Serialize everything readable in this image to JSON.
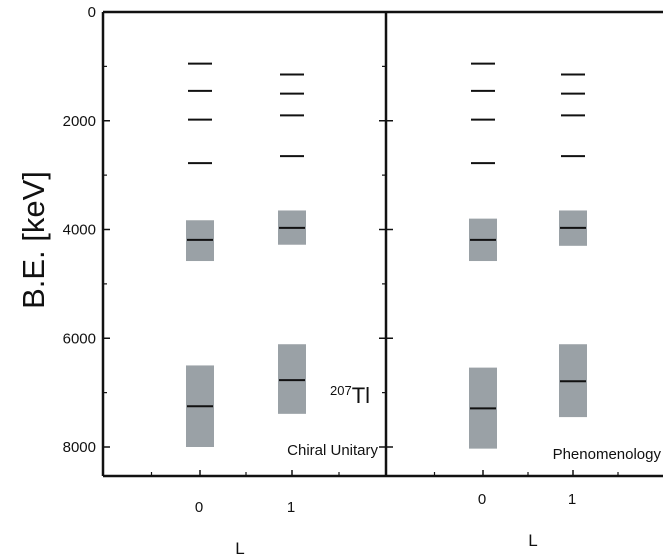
{
  "chart_data": {
    "type": "level-scheme",
    "ylabel": "B.E. [keV]",
    "xlabel": "L",
    "ylim": [
      0,
      8500
    ],
    "y_inverted": true,
    "y_ticks": [
      0,
      2000,
      4000,
      6000,
      8000
    ],
    "x_ticks": [
      0,
      1
    ],
    "grid": false,
    "panels": [
      {
        "label": "Chiral Unitary",
        "nucleus_mass": "207",
        "nucleus_symbol": "Tl",
        "levels": [
          {
            "L": 0,
            "energies": [
              950,
              1450,
              1980,
              2780
            ]
          },
          {
            "L": 1,
            "energies": [
              1150,
              1500,
              1900,
              2650
            ]
          }
        ],
        "bands": [
          {
            "L": 0,
            "center": 4190,
            "low": 3830,
            "high": 4580
          },
          {
            "L": 1,
            "center": 3970,
            "low": 3650,
            "high": 4280
          },
          {
            "L": 0,
            "center": 7250,
            "low": 6500,
            "high": 8000
          },
          {
            "L": 1,
            "center": 6770,
            "low": 6110,
            "high": 7390
          }
        ]
      },
      {
        "label": "Phenomenology",
        "levels": [
          {
            "L": 0,
            "energies": [
              950,
              1450,
              1980,
              2780
            ]
          },
          {
            "L": 1,
            "energies": [
              1150,
              1500,
              1900,
              2650
            ]
          }
        ],
        "bands": [
          {
            "L": 0,
            "center": 4190,
            "low": 3800,
            "high": 4580
          },
          {
            "L": 1,
            "center": 3970,
            "low": 3650,
            "high": 4300
          },
          {
            "L": 0,
            "center": 7290,
            "low": 6540,
            "high": 8030
          },
          {
            "L": 1,
            "center": 6790,
            "low": 6110,
            "high": 7450
          }
        ]
      }
    ],
    "colors": {
      "band": "#9aa1a6",
      "line": "#111111"
    }
  }
}
